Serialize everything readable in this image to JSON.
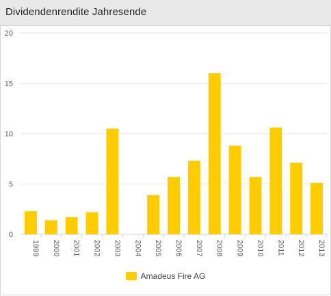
{
  "header": {
    "title": "Dividendenrendite Jahresende"
  },
  "colors": {
    "bar": "#ffcc00",
    "grid": "#e6e6e6",
    "axis": "#ccd6eb"
  },
  "chart_data": {
    "type": "bar",
    "title": "Dividendenrendite Jahresende",
    "xlabel": "",
    "ylabel": "",
    "ylim": [
      0,
      20
    ],
    "yticks": [
      0,
      5,
      10,
      15,
      20
    ],
    "grid": true,
    "legend": "bottom-center",
    "categories": [
      "1999",
      "2000",
      "2001",
      "2002",
      "2003",
      "2004",
      "2005",
      "2006",
      "2007",
      "2008",
      "2009",
      "2010",
      "2011",
      "2012",
      "2013"
    ],
    "series": [
      {
        "name": "Amadeus Fire AG",
        "values": [
          2.3,
          1.4,
          1.7,
          2.2,
          10.5,
          0,
          3.9,
          5.7,
          7.3,
          16.0,
          8.8,
          5.7,
          10.6,
          7.1,
          5.1
        ]
      }
    ]
  }
}
